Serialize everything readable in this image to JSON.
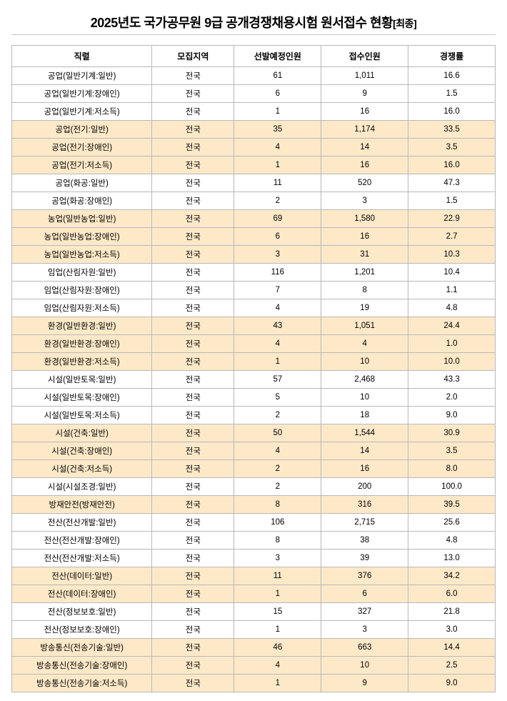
{
  "title_main": "2025년도 국가공무원 9급 공개경쟁채용시험 원서접수 현황",
  "title_sub": "[최종]",
  "colors": {
    "highlight_bg": "#fde9c8",
    "border": "#b8b8b8",
    "text": "#000000",
    "page_bg": "#ffffff"
  },
  "columns": [
    "직렬",
    "모집지역",
    "선발예정인원",
    "접수인원",
    "경쟁률"
  ],
  "rows": [
    {
      "hl": false,
      "job": "공업(일반기계:일반)",
      "region": "전국",
      "plan": "61",
      "app": "1,011",
      "rate": "16.6"
    },
    {
      "hl": false,
      "job": "공업(일반기계:장애인)",
      "region": "전국",
      "plan": "6",
      "app": "9",
      "rate": "1.5"
    },
    {
      "hl": false,
      "job": "공업(일반기계:저소득)",
      "region": "전국",
      "plan": "1",
      "app": "16",
      "rate": "16.0"
    },
    {
      "hl": true,
      "job": "공업(전기:일반)",
      "region": "전국",
      "plan": "35",
      "app": "1,174",
      "rate": "33.5"
    },
    {
      "hl": true,
      "job": "공업(전기:장애인)",
      "region": "전국",
      "plan": "4",
      "app": "14",
      "rate": "3.5"
    },
    {
      "hl": true,
      "job": "공업(전기:저소득)",
      "region": "전국",
      "plan": "1",
      "app": "16",
      "rate": "16.0"
    },
    {
      "hl": false,
      "job": "공업(화공:일반)",
      "region": "전국",
      "plan": "11",
      "app": "520",
      "rate": "47.3"
    },
    {
      "hl": false,
      "job": "공업(화공:장애인)",
      "region": "전국",
      "plan": "2",
      "app": "3",
      "rate": "1.5"
    },
    {
      "hl": true,
      "job": "농업(일반농업:일반)",
      "region": "전국",
      "plan": "69",
      "app": "1,580",
      "rate": "22.9"
    },
    {
      "hl": true,
      "job": "농업(일반농업:장애인)",
      "region": "전국",
      "plan": "6",
      "app": "16",
      "rate": "2.7"
    },
    {
      "hl": true,
      "job": "농업(일반농업:저소득)",
      "region": "전국",
      "plan": "3",
      "app": "31",
      "rate": "10.3"
    },
    {
      "hl": false,
      "job": "임업(산림자원:일반)",
      "region": "전국",
      "plan": "116",
      "app": "1,201",
      "rate": "10.4"
    },
    {
      "hl": false,
      "job": "임업(산림자원:장애인)",
      "region": "전국",
      "plan": "7",
      "app": "8",
      "rate": "1.1"
    },
    {
      "hl": false,
      "job": "임업(산림자원:저소득)",
      "region": "전국",
      "plan": "4",
      "app": "19",
      "rate": "4.8"
    },
    {
      "hl": true,
      "job": "환경(일반환경:일반)",
      "region": "전국",
      "plan": "43",
      "app": "1,051",
      "rate": "24.4"
    },
    {
      "hl": true,
      "job": "환경(일반환경:장애인)",
      "region": "전국",
      "plan": "4",
      "app": "4",
      "rate": "1.0"
    },
    {
      "hl": true,
      "job": "환경(일반환경:저소득)",
      "region": "전국",
      "plan": "1",
      "app": "10",
      "rate": "10.0"
    },
    {
      "hl": false,
      "job": "시설(일반토목:일반)",
      "region": "전국",
      "plan": "57",
      "app": "2,468",
      "rate": "43.3"
    },
    {
      "hl": false,
      "job": "시설(일반토목:장애인)",
      "region": "전국",
      "plan": "5",
      "app": "10",
      "rate": "2.0"
    },
    {
      "hl": false,
      "job": "시설(일반토목:저소득)",
      "region": "전국",
      "plan": "2",
      "app": "18",
      "rate": "9.0"
    },
    {
      "hl": true,
      "job": "시설(건축:일반)",
      "region": "전국",
      "plan": "50",
      "app": "1,544",
      "rate": "30.9"
    },
    {
      "hl": true,
      "job": "시설(건축:장애인)",
      "region": "전국",
      "plan": "4",
      "app": "14",
      "rate": "3.5"
    },
    {
      "hl": true,
      "job": "시설(건축:저소득)",
      "region": "전국",
      "plan": "2",
      "app": "16",
      "rate": "8.0"
    },
    {
      "hl": false,
      "job": "시설(시설조경:일반)",
      "region": "전국",
      "plan": "2",
      "app": "200",
      "rate": "100.0"
    },
    {
      "hl": true,
      "job": "방재안전(방재안전)",
      "region": "전국",
      "plan": "8",
      "app": "316",
      "rate": "39.5"
    },
    {
      "hl": false,
      "job": "전산(전산개발:일반)",
      "region": "전국",
      "plan": "106",
      "app": "2,715",
      "rate": "25.6"
    },
    {
      "hl": false,
      "job": "전산(전산개발:장애인)",
      "region": "전국",
      "plan": "8",
      "app": "38",
      "rate": "4.8"
    },
    {
      "hl": false,
      "job": "전산(전산개발:저소득)",
      "region": "전국",
      "plan": "3",
      "app": "39",
      "rate": "13.0"
    },
    {
      "hl": true,
      "job": "전산(데이터:일반)",
      "region": "전국",
      "plan": "11",
      "app": "376",
      "rate": "34.2"
    },
    {
      "hl": true,
      "job": "전산(데이터:장애인)",
      "region": "전국",
      "plan": "1",
      "app": "6",
      "rate": "6.0"
    },
    {
      "hl": false,
      "job": "전산(정보보호:일반)",
      "region": "전국",
      "plan": "15",
      "app": "327",
      "rate": "21.8"
    },
    {
      "hl": false,
      "job": "전산(정보보호:장애인)",
      "region": "전국",
      "plan": "1",
      "app": "3",
      "rate": "3.0"
    },
    {
      "hl": true,
      "job": "방송통신(전송기술:일반)",
      "region": "전국",
      "plan": "46",
      "app": "663",
      "rate": "14.4"
    },
    {
      "hl": true,
      "job": "방송통신(전송기술:장애인)",
      "region": "전국",
      "plan": "4",
      "app": "10",
      "rate": "2.5"
    },
    {
      "hl": true,
      "job": "방송통신(전송기술:저소득)",
      "region": "전국",
      "plan": "1",
      "app": "9",
      "rate": "9.0"
    }
  ]
}
